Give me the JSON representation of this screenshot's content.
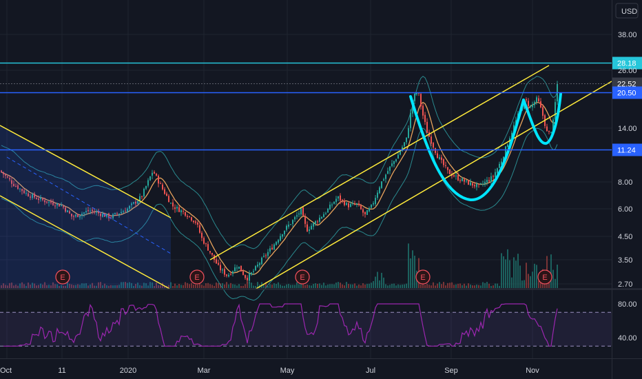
{
  "chart_data": {
    "type": "candlestick",
    "currency_label": "USD",
    "y_scale": "log",
    "ylim": [
      2.6,
      52
    ],
    "price_ticks": [
      38.0,
      26.0,
      14.0,
      8.0,
      6.0,
      4.5,
      3.5,
      2.7
    ],
    "price_tick_labels": [
      "38.00",
      "26.00",
      "14.00",
      "8.00",
      "6.00",
      "4.50",
      "3.50",
      "2.70"
    ],
    "x_tick_labels": [
      "Oct",
      "11",
      "2020",
      "Mar",
      "May",
      "Jul",
      "Sep",
      "Nov"
    ],
    "horizontal_levels": [
      {
        "label": "28.18",
        "value": 28.18,
        "color": "#26c6da"
      },
      {
        "label": "22.52",
        "value": 22.52,
        "color": "#363a45"
      },
      {
        "label": "20.50",
        "value": 20.5,
        "color": "#2962ff"
      },
      {
        "label": "11.24",
        "value": 11.24,
        "color": "#2962ff"
      }
    ],
    "rsi": {
      "ticks": [
        80.0,
        40.0
      ],
      "tick_labels": [
        "80.00",
        "40.00"
      ],
      "band": [
        70,
        30
      ]
    },
    "earnings_markers": [
      "E",
      "E",
      "E",
      "E",
      "E"
    ],
    "colors": {
      "background": "#131722",
      "up": "#26a69a",
      "down": "#ef5350",
      "channel": "#ffeb3b",
      "cup_pattern": "#00e5ff",
      "rsi_line": "#9c27b0",
      "moving_average": "#e8a35c",
      "bollinger": "#2a8a8f"
    }
  }
}
